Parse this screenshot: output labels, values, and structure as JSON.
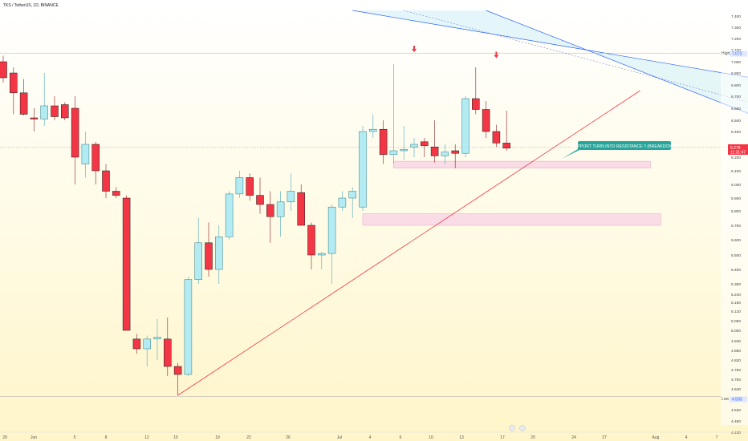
{
  "header": {
    "title": "TKS / TetherUS, 1D, BINANCE"
  },
  "price_axis": {
    "ticks": [
      "7.400",
      "7.300",
      "7.200",
      "7.100",
      "7.000",
      "6.900",
      "6.800",
      "6.700",
      "6.600",
      "6.500",
      "6.400",
      "6.200",
      "6.100",
      "6.000",
      "5.900",
      "5.800",
      "5.700",
      "5.600",
      "5.500",
      "5.400",
      "5.300",
      "5.240",
      "5.180",
      "5.120",
      "5.060",
      "5.000",
      "4.940",
      "4.880",
      "4.820",
      "4.760",
      "4.700",
      "4.640",
      "4.580",
      "4.530",
      "4.480",
      "4.430"
    ],
    "high_tag": {
      "label": "High",
      "value": "7.072"
    },
    "low_tag": {
      "label": "Low",
      "value": "4.593"
    },
    "current": {
      "value": "6.276",
      "countdown": "11:31:47"
    }
  },
  "time_axis": {
    "ticks": [
      "29",
      "Jun",
      "5",
      "8",
      "12",
      "15",
      "19",
      "22",
      "26",
      "Jul",
      "4",
      "6",
      "10",
      "13",
      "17",
      "20",
      "24",
      "27",
      "Aug",
      "4",
      "7"
    ]
  },
  "annotation": {
    "text": "SUPPORT TURN INTO RESISTANCE !! (BREAKDOWN)"
  },
  "colors": {
    "up": "#b2ebf2",
    "down": "#f23645",
    "trendline": "#f23645",
    "channel": "#2962ff",
    "zone": "#e8a0c8",
    "callout": "#26a69a",
    "arrow": "#f23645"
  },
  "chart_data": {
    "type": "candlestick",
    "title": "TKS / TetherUS, 1D, BINANCE",
    "ohlc": [
      {
        "o": 7.0,
        "h": 7.05,
        "l": 6.82,
        "c": 6.86
      },
      {
        "o": 6.9,
        "h": 6.95,
        "l": 6.55,
        "c": 6.73
      },
      {
        "o": 6.73,
        "h": 6.85,
        "l": 6.54,
        "c": 6.55
      },
      {
        "o": 6.52,
        "h": 6.6,
        "l": 6.4,
        "c": 6.51
      },
      {
        "o": 6.51,
        "h": 6.9,
        "l": 6.45,
        "c": 6.62
      },
      {
        "o": 6.62,
        "h": 6.7,
        "l": 6.5,
        "c": 6.53
      },
      {
        "o": 6.63,
        "h": 6.65,
        "l": 6.5,
        "c": 6.52
      },
      {
        "o": 6.6,
        "h": 6.7,
        "l": 6.0,
        "c": 6.2
      },
      {
        "o": 6.15,
        "h": 6.4,
        "l": 6.05,
        "c": 6.3
      },
      {
        "o": 6.3,
        "h": 6.32,
        "l": 6.0,
        "c": 6.1
      },
      {
        "o": 6.1,
        "h": 6.15,
        "l": 5.9,
        "c": 5.95
      },
      {
        "o": 5.95,
        "h": 5.98,
        "l": 5.9,
        "c": 5.92
      },
      {
        "o": 5.9,
        "h": 5.92,
        "l": 5.0,
        "c": 5.0
      },
      {
        "o": 4.95,
        "h": 4.98,
        "l": 4.86,
        "c": 4.89
      },
      {
        "o": 4.89,
        "h": 4.97,
        "l": 4.78,
        "c": 4.95
      },
      {
        "o": 4.95,
        "h": 5.07,
        "l": 4.82,
        "c": 4.96
      },
      {
        "o": 4.95,
        "h": 5.08,
        "l": 4.72,
        "c": 4.78
      },
      {
        "o": 4.78,
        "h": 4.8,
        "l": 4.6,
        "c": 4.73
      },
      {
        "o": 4.73,
        "h": 5.35,
        "l": 4.72,
        "c": 5.33
      },
      {
        "o": 5.33,
        "h": 5.75,
        "l": 5.3,
        "c": 5.58
      },
      {
        "o": 5.58,
        "h": 5.72,
        "l": 5.35,
        "c": 5.4
      },
      {
        "o": 5.4,
        "h": 5.7,
        "l": 5.3,
        "c": 5.62
      },
      {
        "o": 5.62,
        "h": 5.95,
        "l": 5.6,
        "c": 5.93
      },
      {
        "o": 5.93,
        "h": 6.1,
        "l": 5.9,
        "c": 6.05
      },
      {
        "o": 6.05,
        "h": 6.08,
        "l": 5.88,
        "c": 5.92
      },
      {
        "o": 5.92,
        "h": 6.05,
        "l": 5.78,
        "c": 5.85
      },
      {
        "o": 5.85,
        "h": 5.95,
        "l": 5.58,
        "c": 5.76
      },
      {
        "o": 5.76,
        "h": 5.95,
        "l": 5.62,
        "c": 5.87
      },
      {
        "o": 5.87,
        "h": 6.08,
        "l": 5.8,
        "c": 5.95
      },
      {
        "o": 5.94,
        "h": 6.0,
        "l": 5.7,
        "c": 5.7
      },
      {
        "o": 5.7,
        "h": 5.72,
        "l": 5.4,
        "c": 5.5
      },
      {
        "o": 5.5,
        "h": 5.52,
        "l": 5.4,
        "c": 5.51
      },
      {
        "o": 5.51,
        "h": 5.85,
        "l": 5.3,
        "c": 5.83
      },
      {
        "o": 5.83,
        "h": 5.95,
        "l": 5.8,
        "c": 5.9
      },
      {
        "o": 5.9,
        "h": 5.98,
        "l": 5.75,
        "c": 5.95
      },
      {
        "o": 5.83,
        "h": 6.45,
        "l": 5.8,
        "c": 6.4
      },
      {
        "o": 6.4,
        "h": 6.55,
        "l": 6.35,
        "c": 6.42
      },
      {
        "o": 6.42,
        "h": 6.5,
        "l": 6.15,
        "c": 6.22
      },
      {
        "o": 6.22,
        "h": 6.98,
        "l": 6.15,
        "c": 6.25
      },
      {
        "o": 6.25,
        "h": 6.45,
        "l": 6.18,
        "c": 6.26
      },
      {
        "o": 6.28,
        "h": 6.35,
        "l": 6.2,
        "c": 6.3
      },
      {
        "o": 6.32,
        "h": 6.35,
        "l": 6.2,
        "c": 6.29
      },
      {
        "o": 6.28,
        "h": 6.5,
        "l": 6.16,
        "c": 6.21
      },
      {
        "o": 6.21,
        "h": 6.3,
        "l": 6.15,
        "c": 6.24
      },
      {
        "o": 6.25,
        "h": 6.3,
        "l": 6.12,
        "c": 6.23
      },
      {
        "o": 6.23,
        "h": 6.7,
        "l": 6.2,
        "c": 6.68
      },
      {
        "o": 6.68,
        "h": 6.95,
        "l": 6.55,
        "c": 6.59
      },
      {
        "o": 6.59,
        "h": 6.66,
        "l": 6.35,
        "c": 6.4
      },
      {
        "o": 6.4,
        "h": 6.46,
        "l": 6.28,
        "c": 6.31
      },
      {
        "o": 6.31,
        "h": 6.58,
        "l": 6.25,
        "c": 6.27
      }
    ],
    "trendline": {
      "from_bar": 17,
      "from_price": 4.6,
      "to_bar": 62,
      "to_price": 6.75
    },
    "channel": {
      "upper": {
        "from_bar": 34,
        "from_price": 7.45,
        "to_bar": 77,
        "to_price": 6.8
      },
      "mid": {
        "from_bar": 39,
        "from_price": 7.45,
        "to_bar": 77,
        "to_price": 6.55
      },
      "lower": {
        "from_bar": 47,
        "from_price": 7.45,
        "to_bar": 77,
        "to_price": 6.4
      }
    },
    "zones": [
      {
        "from_bar": 38,
        "to_bar": 63,
        "top": 6.17,
        "bottom": 6.12
      },
      {
        "from_bar": 35,
        "to_bar": 64,
        "top": 5.78,
        "bottom": 5.7
      }
    ],
    "arrows": [
      {
        "bar": 40,
        "price": 7.08
      },
      {
        "bar": 48,
        "price": 7.03
      }
    ],
    "high": 7.072,
    "low": 4.593,
    "last": 6.276
  }
}
